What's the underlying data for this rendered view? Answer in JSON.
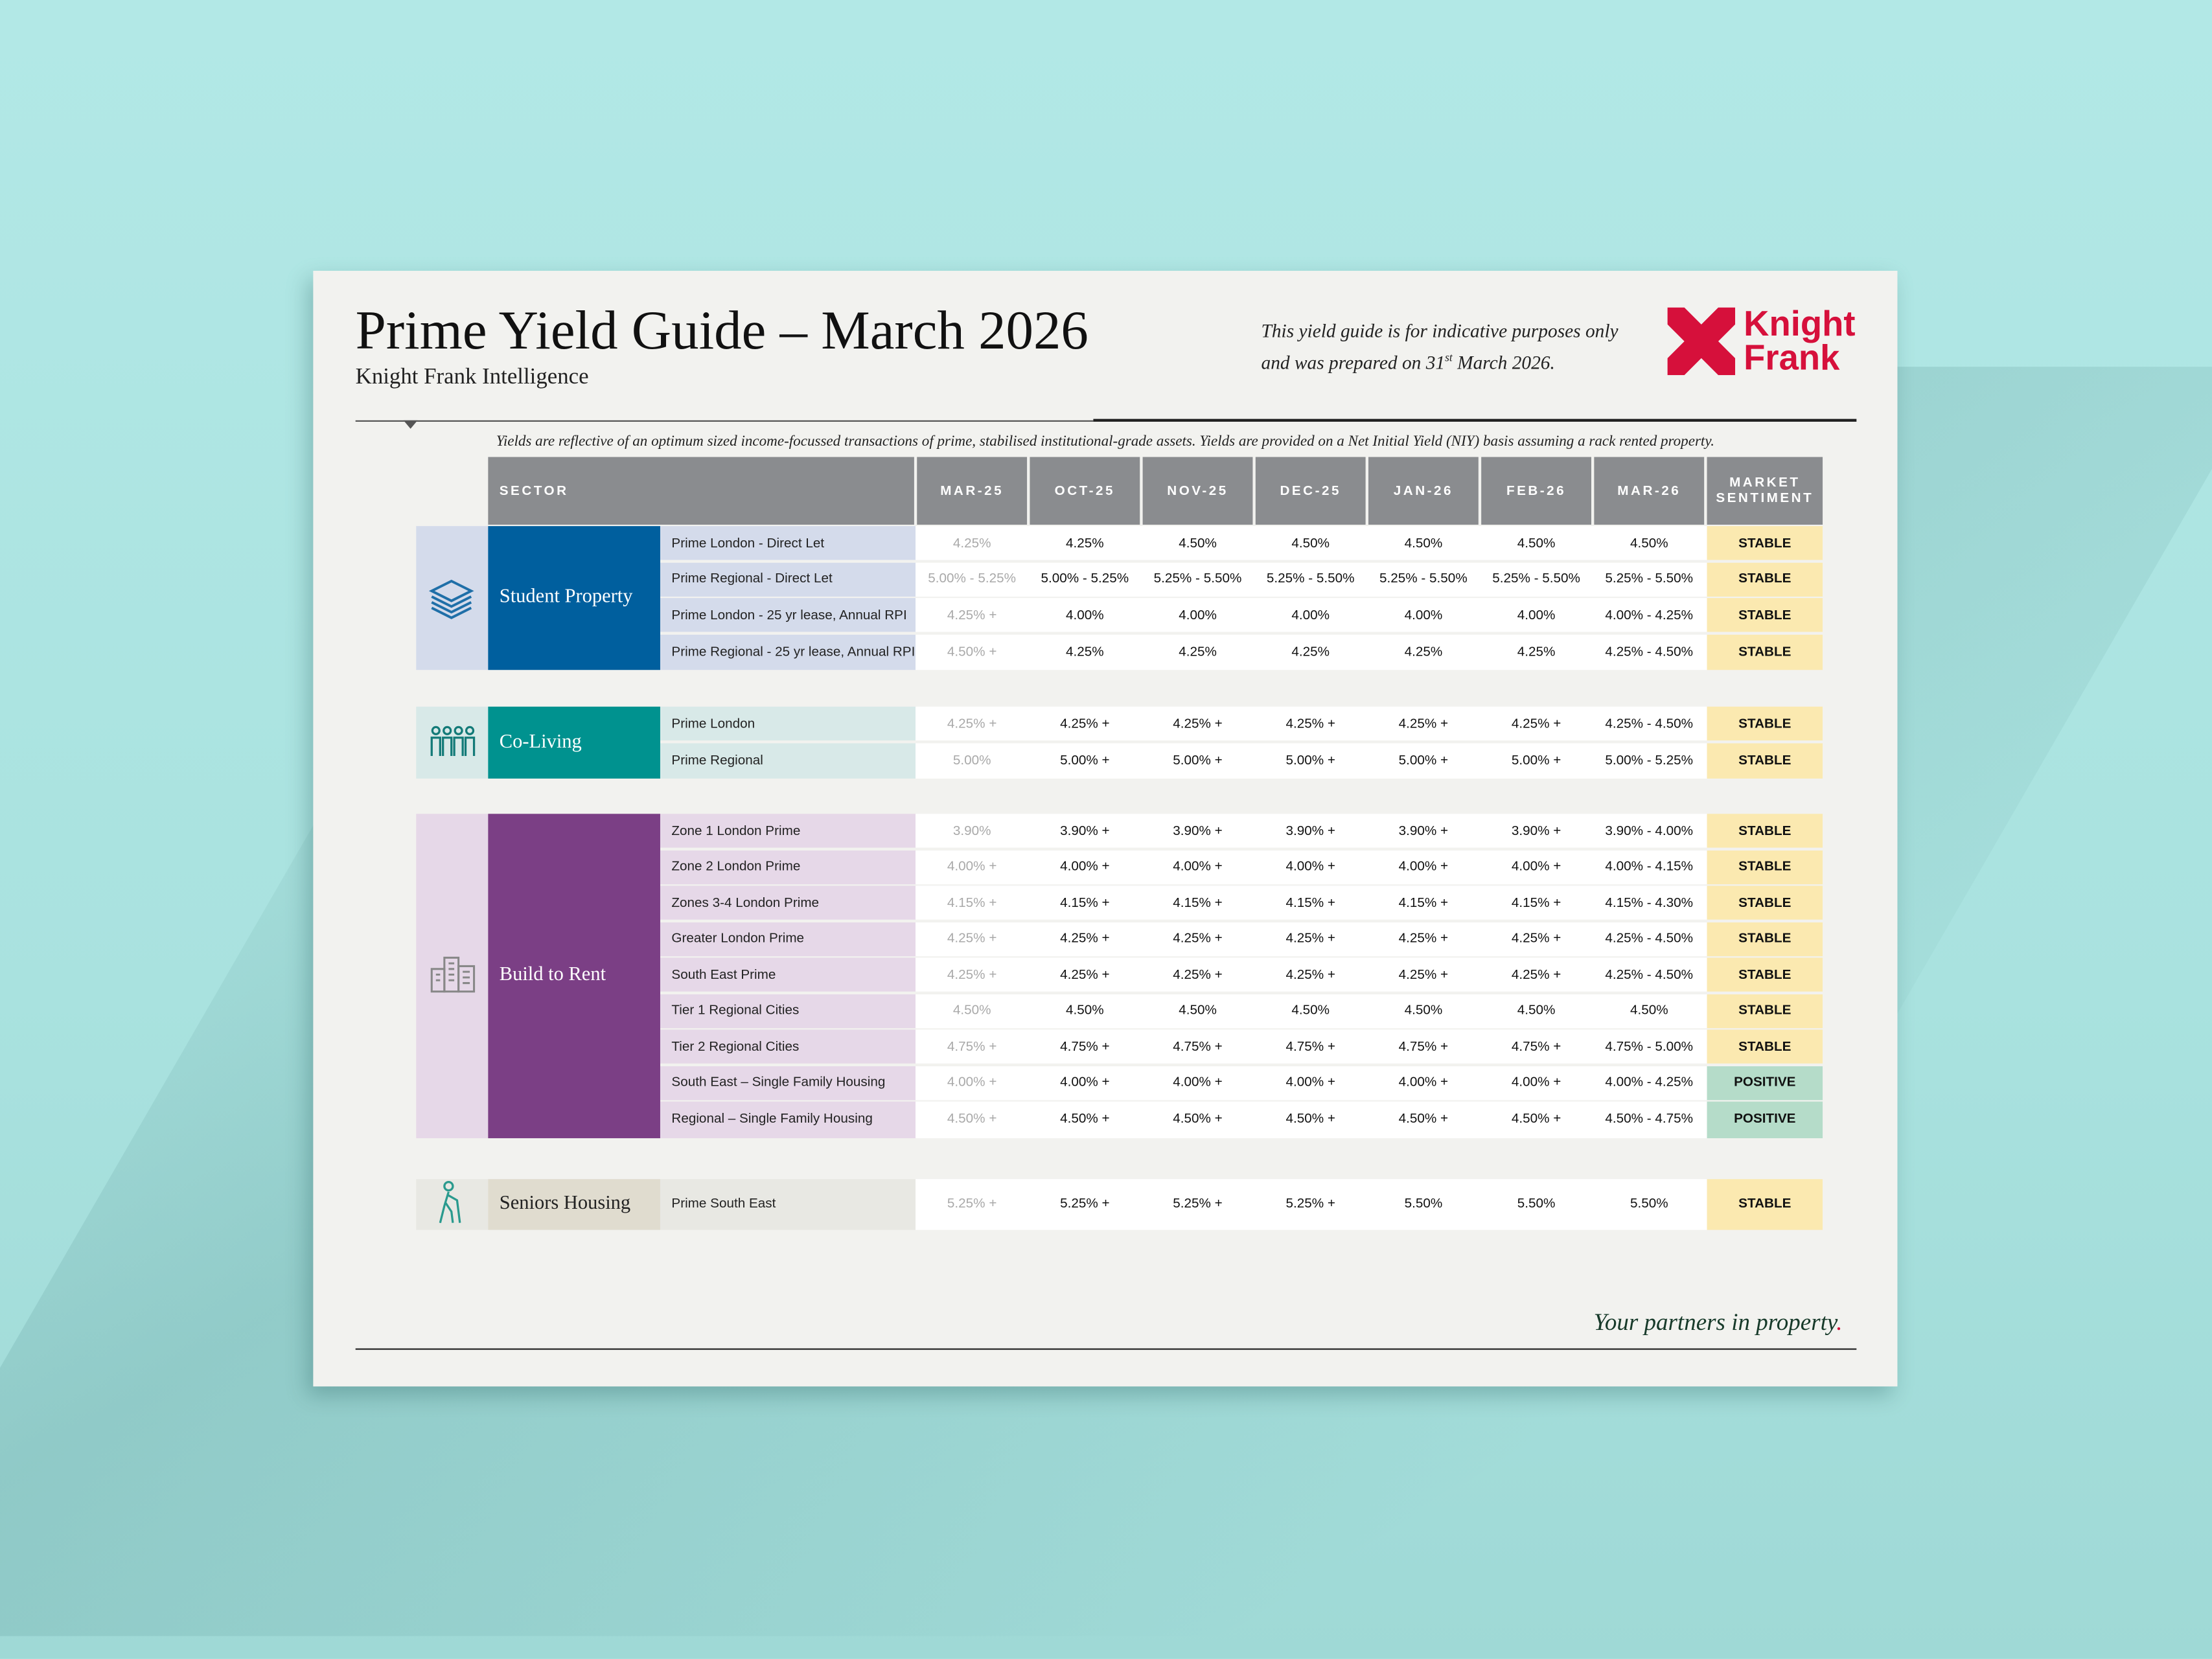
{
  "header": {
    "title": "Prime Yield Guide – March 2026",
    "subtitle": "Knight Frank Intelligence",
    "disclaimer_line1": "This yield guide is for indicative purposes only",
    "disclaimer_line2_prefix": "and was prepared on 31",
    "disclaimer_sup": "st",
    "disclaimer_line2_suffix": " March 2026.",
    "logo_text": [
      "Knight",
      "Frank"
    ],
    "logo_color": "#d6103b"
  },
  "note": "Yields are reflective of an optimum sized income-focussed transactions of prime, stabilised institutional-grade assets. Yields are provided on a Net Initial Yield (NIY) basis assuming a rack rented property.",
  "table": {
    "sector_header": "SECTOR",
    "columns": [
      "MAR-25",
      "OCT-25",
      "NOV-25",
      "DEC-25",
      "JAN-26",
      "FEB-26",
      "MAR-26"
    ],
    "sentiment_header": "MARKET SENTIMENT",
    "sentiment_colors": {
      "STABLE": "#fbe9b0",
      "POSITIVE": "#b5dcc9"
    },
    "sectors": [
      {
        "name": "Student Property",
        "icon": "books-icon",
        "color": "#005f9e",
        "light": "#d4dbeb",
        "text_color": "#ffffff",
        "rows": [
          {
            "name": "Prime London - Direct Let",
            "values": [
              "4.25%",
              "4.25%",
              "4.50%",
              "4.50%",
              "4.50%",
              "4.50%",
              "4.50%"
            ],
            "sentiment": "STABLE"
          },
          {
            "name": "Prime Regional - Direct Let",
            "values": [
              "5.00% - 5.25%",
              "5.00% - 5.25%",
              "5.25% - 5.50%",
              "5.25% - 5.50%",
              "5.25% - 5.50%",
              "5.25% - 5.50%",
              "5.25% - 5.50%"
            ],
            "sentiment": "STABLE"
          },
          {
            "name": "Prime London - 25 yr lease, Annual RPI",
            "values": [
              "4.25% +",
              "4.00%",
              "4.00%",
              "4.00%",
              "4.00%",
              "4.00%",
              "4.00% - 4.25%"
            ],
            "sentiment": "STABLE"
          },
          {
            "name": "Prime Regional - 25 yr lease, Annual RPI",
            "values": [
              "4.50% +",
              "4.25%",
              "4.25%",
              "4.25%",
              "4.25%",
              "4.25%",
              "4.25% - 4.50%"
            ],
            "sentiment": "STABLE"
          }
        ]
      },
      {
        "name": "Co-Living",
        "icon": "people-icon",
        "color": "#00928f",
        "light": "#d8e9e8",
        "text_color": "#ffffff",
        "rows": [
          {
            "name": "Prime London",
            "values": [
              "4.25% +",
              "4.25% +",
              "4.25% +",
              "4.25% +",
              "4.25% +",
              "4.25% +",
              "4.25% - 4.50%"
            ],
            "sentiment": "STABLE"
          },
          {
            "name": "Prime Regional",
            "values": [
              "5.00%",
              "5.00% +",
              "5.00% +",
              "5.00% +",
              "5.00% +",
              "5.00% +",
              "5.00% - 5.25%"
            ],
            "sentiment": "STABLE"
          }
        ]
      },
      {
        "name": "Build to Rent",
        "icon": "buildings-icon",
        "color": "#7b3f85",
        "light": "#e6d8e8",
        "text_color": "#ffffff",
        "rows": [
          {
            "name": "Zone 1 London Prime",
            "values": [
              "3.90%",
              "3.90% +",
              "3.90% +",
              "3.90% +",
              "3.90% +",
              "3.90% +",
              "3.90% - 4.00%"
            ],
            "sentiment": "STABLE"
          },
          {
            "name": "Zone 2 London Prime",
            "values": [
              "4.00% +",
              "4.00% +",
              "4.00% +",
              "4.00% +",
              "4.00% +",
              "4.00% +",
              "4.00% - 4.15%"
            ],
            "sentiment": "STABLE"
          },
          {
            "name": "Zones 3-4 London Prime",
            "values": [
              "4.15% +",
              "4.15% +",
              "4.15% +",
              "4.15% +",
              "4.15% +",
              "4.15% +",
              "4.15% - 4.30%"
            ],
            "sentiment": "STABLE"
          },
          {
            "name": "Greater London Prime",
            "values": [
              "4.25% +",
              "4.25% +",
              "4.25% +",
              "4.25% +",
              "4.25% +",
              "4.25% +",
              "4.25% - 4.50%"
            ],
            "sentiment": "STABLE"
          },
          {
            "name": "South East Prime",
            "values": [
              "4.25% +",
              "4.25% +",
              "4.25% +",
              "4.25% +",
              "4.25% +",
              "4.25% +",
              "4.25% - 4.50%"
            ],
            "sentiment": "STABLE"
          },
          {
            "name": "Tier 1 Regional Cities",
            "values": [
              "4.50%",
              "4.50%",
              "4.50%",
              "4.50%",
              "4.50%",
              "4.50%",
              "4.50%"
            ],
            "sentiment": "STABLE"
          },
          {
            "name": "Tier 2 Regional Cities",
            "values": [
              "4.75% +",
              "4.75% +",
              "4.75% +",
              "4.75% +",
              "4.75% +",
              "4.75% +",
              "4.75% - 5.00%"
            ],
            "sentiment": "STABLE"
          },
          {
            "name": "South East – Single Family Housing",
            "values": [
              "4.00% +",
              "4.00% +",
              "4.00% +",
              "4.00% +",
              "4.00% +",
              "4.00% +",
              "4.00% - 4.25%"
            ],
            "sentiment": "POSITIVE"
          },
          {
            "name": "Regional – Single Family Housing",
            "values": [
              "4.50% +",
              "4.50% +",
              "4.50% +",
              "4.50% +",
              "4.50% +",
              "4.50% +",
              "4.50% - 4.75%"
            ],
            "sentiment": "POSITIVE"
          }
        ]
      },
      {
        "name": "Seniors Housing",
        "icon": "elderly-person-icon",
        "color": "#e0dccf",
        "light": "#e8e8e3",
        "text_color": "#222222",
        "rows": [
          {
            "name": "Prime South East",
            "values": [
              "5.25% +",
              "5.25% +",
              "5.25% +",
              "5.25% +",
              "5.50%",
              "5.50%",
              "5.50%"
            ],
            "sentiment": "STABLE"
          }
        ]
      }
    ]
  },
  "footer": {
    "tagline": "Your partners in property",
    "tagline_dot": "."
  }
}
